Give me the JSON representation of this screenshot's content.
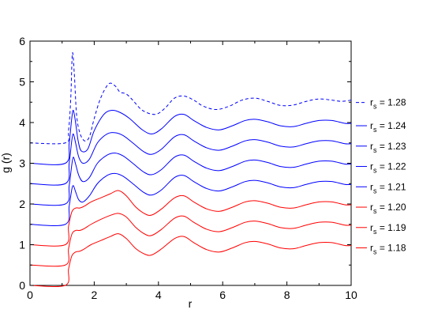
{
  "chart_data": {
    "type": "line",
    "xlabel": "r",
    "ylabel": "g (r)",
    "xlim": [
      0,
      10
    ],
    "ylim": [
      0,
      6
    ],
    "x_ticks": [
      "0",
      "2",
      "4",
      "6",
      "8",
      "10"
    ],
    "y_ticks": [
      "0",
      "1",
      "2",
      "3",
      "4",
      "5",
      "6"
    ],
    "grid": false,
    "legend_position": "right",
    "legend_label_prefix": "r",
    "legend_label_subscript": "s",
    "legend_label_separator": " = ",
    "series": [
      {
        "name": "1.28",
        "color": "#0000ff",
        "dashed": true,
        "points": [
          [
            0,
            3.5
          ],
          [
            1.1,
            3.5
          ],
          [
            1.2,
            3.8
          ],
          [
            1.27,
            4.6
          ],
          [
            1.32,
            5.7
          ],
          [
            1.38,
            5.2
          ],
          [
            1.45,
            4.2
          ],
          [
            1.55,
            3.75
          ],
          [
            1.7,
            3.55
          ],
          [
            1.85,
            3.65
          ],
          [
            2.0,
            4.1
          ],
          [
            2.2,
            4.6
          ],
          [
            2.45,
            4.95
          ],
          [
            2.65,
            4.9
          ],
          [
            2.8,
            4.75
          ],
          [
            3.0,
            4.7
          ],
          [
            3.2,
            4.55
          ],
          [
            3.5,
            4.3
          ],
          [
            3.9,
            4.2
          ],
          [
            4.2,
            4.35
          ],
          [
            4.5,
            4.6
          ],
          [
            4.8,
            4.65
          ],
          [
            5.1,
            4.55
          ],
          [
            5.4,
            4.4
          ],
          [
            5.8,
            4.32
          ],
          [
            6.2,
            4.4
          ],
          [
            6.6,
            4.55
          ],
          [
            7.0,
            4.6
          ],
          [
            7.4,
            4.52
          ],
          [
            7.8,
            4.42
          ],
          [
            8.2,
            4.43
          ],
          [
            8.6,
            4.52
          ],
          [
            9.0,
            4.58
          ],
          [
            9.4,
            4.55
          ],
          [
            9.7,
            4.52
          ],
          [
            10,
            4.55
          ]
        ]
      },
      {
        "name": "1.24",
        "color": "#0000ff",
        "dashed": false,
        "points": [
          [
            0,
            3.0
          ],
          [
            1.1,
            3.0
          ],
          [
            1.22,
            3.5
          ],
          [
            1.3,
            4.1
          ],
          [
            1.35,
            4.3
          ],
          [
            1.42,
            4.0
          ],
          [
            1.5,
            3.55
          ],
          [
            1.6,
            3.3
          ],
          [
            1.8,
            3.35
          ],
          [
            2.0,
            3.8
          ],
          [
            2.3,
            4.2
          ],
          [
            2.55,
            4.3
          ],
          [
            2.8,
            4.25
          ],
          [
            3.1,
            4.1
          ],
          [
            3.5,
            3.82
          ],
          [
            3.8,
            3.72
          ],
          [
            4.1,
            3.85
          ],
          [
            4.5,
            4.15
          ],
          [
            4.8,
            4.2
          ],
          [
            5.1,
            4.05
          ],
          [
            5.5,
            3.88
          ],
          [
            5.9,
            3.82
          ],
          [
            6.3,
            3.92
          ],
          [
            6.7,
            4.05
          ],
          [
            7.0,
            4.08
          ],
          [
            7.4,
            4.02
          ],
          [
            7.8,
            3.92
          ],
          [
            8.2,
            3.9
          ],
          [
            8.6,
            3.98
          ],
          [
            9.0,
            4.05
          ],
          [
            9.4,
            4.05
          ],
          [
            9.8,
            3.98
          ],
          [
            10,
            3.98
          ]
        ]
      },
      {
        "name": "1.23",
        "color": "#0000ff",
        "dashed": false,
        "points": [
          [
            0,
            2.5
          ],
          [
            1.1,
            2.5
          ],
          [
            1.22,
            3.0
          ],
          [
            1.3,
            3.55
          ],
          [
            1.35,
            3.72
          ],
          [
            1.42,
            3.5
          ],
          [
            1.52,
            3.15
          ],
          [
            1.65,
            3.0
          ],
          [
            1.85,
            3.1
          ],
          [
            2.1,
            3.5
          ],
          [
            2.4,
            3.72
          ],
          [
            2.65,
            3.75
          ],
          [
            2.9,
            3.68
          ],
          [
            3.2,
            3.5
          ],
          [
            3.55,
            3.28
          ],
          [
            3.8,
            3.22
          ],
          [
            4.1,
            3.35
          ],
          [
            4.5,
            3.65
          ],
          [
            4.8,
            3.7
          ],
          [
            5.1,
            3.55
          ],
          [
            5.5,
            3.38
          ],
          [
            5.9,
            3.32
          ],
          [
            6.3,
            3.42
          ],
          [
            6.7,
            3.55
          ],
          [
            7.0,
            3.58
          ],
          [
            7.4,
            3.52
          ],
          [
            7.8,
            3.42
          ],
          [
            8.2,
            3.4
          ],
          [
            8.6,
            3.48
          ],
          [
            9.0,
            3.55
          ],
          [
            9.4,
            3.55
          ],
          [
            9.8,
            3.48
          ],
          [
            10,
            3.48
          ]
        ]
      },
      {
        "name": "1.22",
        "color": "#0000ff",
        "dashed": false,
        "points": [
          [
            0,
            2.0
          ],
          [
            1.1,
            2.0
          ],
          [
            1.22,
            2.45
          ],
          [
            1.3,
            2.95
          ],
          [
            1.35,
            3.15
          ],
          [
            1.42,
            2.98
          ],
          [
            1.52,
            2.7
          ],
          [
            1.65,
            2.55
          ],
          [
            1.85,
            2.65
          ],
          [
            2.1,
            3.0
          ],
          [
            2.4,
            3.2
          ],
          [
            2.65,
            3.25
          ],
          [
            2.9,
            3.18
          ],
          [
            3.2,
            3.0
          ],
          [
            3.55,
            2.78
          ],
          [
            3.8,
            2.72
          ],
          [
            4.1,
            2.85
          ],
          [
            4.5,
            3.15
          ],
          [
            4.8,
            3.2
          ],
          [
            5.1,
            3.05
          ],
          [
            5.5,
            2.88
          ],
          [
            5.9,
            2.82
          ],
          [
            6.3,
            2.92
          ],
          [
            6.7,
            3.05
          ],
          [
            7.0,
            3.08
          ],
          [
            7.4,
            3.02
          ],
          [
            7.8,
            2.92
          ],
          [
            8.2,
            2.9
          ],
          [
            8.6,
            2.98
          ],
          [
            9.0,
            3.05
          ],
          [
            9.4,
            3.05
          ],
          [
            9.8,
            2.98
          ],
          [
            10,
            2.98
          ]
        ]
      },
      {
        "name": "1.21",
        "color": "#0000ff",
        "dashed": false,
        "points": [
          [
            0,
            1.5
          ],
          [
            1.1,
            1.5
          ],
          [
            1.22,
            1.95
          ],
          [
            1.3,
            2.35
          ],
          [
            1.35,
            2.45
          ],
          [
            1.42,
            2.3
          ],
          [
            1.52,
            2.1
          ],
          [
            1.65,
            2.05
          ],
          [
            1.85,
            2.2
          ],
          [
            2.1,
            2.5
          ],
          [
            2.4,
            2.7
          ],
          [
            2.65,
            2.75
          ],
          [
            2.9,
            2.68
          ],
          [
            3.2,
            2.5
          ],
          [
            3.55,
            2.28
          ],
          [
            3.8,
            2.22
          ],
          [
            4.1,
            2.35
          ],
          [
            4.5,
            2.65
          ],
          [
            4.8,
            2.7
          ],
          [
            5.1,
            2.55
          ],
          [
            5.5,
            2.38
          ],
          [
            5.9,
            2.32
          ],
          [
            6.3,
            2.42
          ],
          [
            6.7,
            2.55
          ],
          [
            7.0,
            2.58
          ],
          [
            7.4,
            2.52
          ],
          [
            7.8,
            2.42
          ],
          [
            8.2,
            2.4
          ],
          [
            8.6,
            2.48
          ],
          [
            9.0,
            2.55
          ],
          [
            9.4,
            2.55
          ],
          [
            9.8,
            2.48
          ],
          [
            10,
            2.48
          ]
        ]
      },
      {
        "name": "1.20",
        "color": "#ff0000",
        "dashed": false,
        "points": [
          [
            0,
            1.0
          ],
          [
            1.1,
            1.0
          ],
          [
            1.2,
            1.45
          ],
          [
            1.3,
            1.8
          ],
          [
            1.42,
            1.9
          ],
          [
            1.55,
            1.9
          ],
          [
            1.7,
            1.95
          ],
          [
            1.9,
            2.05
          ],
          [
            2.2,
            2.15
          ],
          [
            2.5,
            2.25
          ],
          [
            2.75,
            2.33
          ],
          [
            3.0,
            2.2
          ],
          [
            3.3,
            1.92
          ],
          [
            3.6,
            1.75
          ],
          [
            3.8,
            1.73
          ],
          [
            4.1,
            1.88
          ],
          [
            4.5,
            2.15
          ],
          [
            4.8,
            2.2
          ],
          [
            5.1,
            2.05
          ],
          [
            5.5,
            1.88
          ],
          [
            5.9,
            1.82
          ],
          [
            6.3,
            1.92
          ],
          [
            6.7,
            2.05
          ],
          [
            7.0,
            2.08
          ],
          [
            7.4,
            2.02
          ],
          [
            7.8,
            1.92
          ],
          [
            8.2,
            1.9
          ],
          [
            8.6,
            1.98
          ],
          [
            9.0,
            2.05
          ],
          [
            9.4,
            2.05
          ],
          [
            9.8,
            1.98
          ],
          [
            10,
            1.98
          ]
        ]
      },
      {
        "name": "1.19",
        "color": "#ff0000",
        "dashed": false,
        "points": [
          [
            0,
            0.5
          ],
          [
            1.1,
            0.5
          ],
          [
            1.2,
            0.9
          ],
          [
            1.3,
            1.25
          ],
          [
            1.42,
            1.35
          ],
          [
            1.55,
            1.35
          ],
          [
            1.7,
            1.4
          ],
          [
            1.9,
            1.5
          ],
          [
            2.2,
            1.62
          ],
          [
            2.5,
            1.72
          ],
          [
            2.75,
            1.77
          ],
          [
            3.0,
            1.68
          ],
          [
            3.3,
            1.42
          ],
          [
            3.6,
            1.25
          ],
          [
            3.8,
            1.23
          ],
          [
            4.1,
            1.38
          ],
          [
            4.5,
            1.65
          ],
          [
            4.8,
            1.7
          ],
          [
            5.1,
            1.55
          ],
          [
            5.5,
            1.38
          ],
          [
            5.9,
            1.32
          ],
          [
            6.3,
            1.42
          ],
          [
            6.7,
            1.55
          ],
          [
            7.0,
            1.58
          ],
          [
            7.4,
            1.52
          ],
          [
            7.8,
            1.42
          ],
          [
            8.2,
            1.4
          ],
          [
            8.6,
            1.48
          ],
          [
            9.0,
            1.55
          ],
          [
            9.4,
            1.55
          ],
          [
            9.8,
            1.48
          ],
          [
            10,
            1.48
          ]
        ]
      },
      {
        "name": "1.18",
        "color": "#ff0000",
        "dashed": false,
        "points": [
          [
            0,
            0.0
          ],
          [
            1.1,
            0.0
          ],
          [
            1.2,
            0.4
          ],
          [
            1.3,
            0.72
          ],
          [
            1.42,
            0.82
          ],
          [
            1.55,
            0.84
          ],
          [
            1.7,
            0.9
          ],
          [
            1.9,
            1.0
          ],
          [
            2.2,
            1.1
          ],
          [
            2.5,
            1.2
          ],
          [
            2.75,
            1.27
          ],
          [
            3.0,
            1.15
          ],
          [
            3.3,
            0.9
          ],
          [
            3.6,
            0.76
          ],
          [
            3.8,
            0.75
          ],
          [
            4.1,
            0.9
          ],
          [
            4.5,
            1.15
          ],
          [
            4.8,
            1.2
          ],
          [
            5.1,
            1.05
          ],
          [
            5.5,
            0.88
          ],
          [
            5.9,
            0.82
          ],
          [
            6.3,
            0.92
          ],
          [
            6.7,
            1.05
          ],
          [
            7.0,
            1.08
          ],
          [
            7.4,
            1.02
          ],
          [
            7.8,
            0.92
          ],
          [
            8.2,
            0.9
          ],
          [
            8.6,
            0.98
          ],
          [
            9.0,
            1.05
          ],
          [
            9.4,
            1.05
          ],
          [
            9.8,
            0.98
          ],
          [
            10,
            0.98
          ]
        ]
      }
    ]
  }
}
